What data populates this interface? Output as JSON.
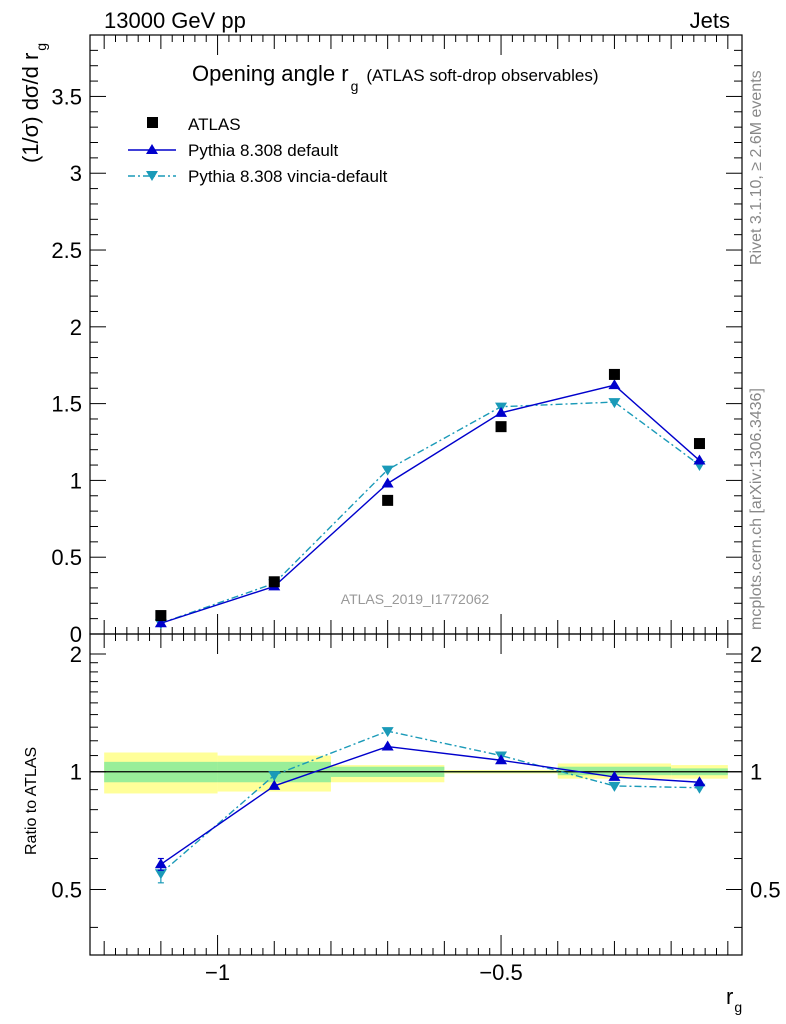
{
  "header": {
    "left": "13000 GeV pp",
    "right": "Jets"
  },
  "side_text": {
    "rivet": "Rivet 3.1.10, ≥ 2.6M events",
    "mcplots": "mcplots.cern.ch [arXiv:1306.3436]"
  },
  "chart_data": [
    {
      "type": "scatter",
      "title": "Opening angle r",
      "title_sub": "g",
      "subtitle": "(ATLAS soft-drop observables)",
      "ylabel": "(1/σ) dσ/d r",
      "ylabel_sub": "g",
      "watermark": "ATLAS_2019_I1772062",
      "xlim": [
        -1.225,
        -0.075
      ],
      "ylim": [
        0,
        3.9
      ],
      "yticks": [
        0,
        0.5,
        1,
        1.5,
        2,
        2.5,
        3,
        3.5
      ],
      "ytick_labels": [
        "0",
        "0.5",
        "1",
        "1.5",
        "2",
        "2.5",
        "3",
        "3.5"
      ],
      "legend_position": "top-left",
      "x": [
        -1.1,
        -0.9,
        -0.7,
        -0.5,
        -0.3,
        -0.15
      ],
      "series": [
        {
          "name": "ATLAS",
          "marker": "square",
          "color": "#000000",
          "values": [
            0.12,
            0.34,
            0.87,
            1.35,
            1.69,
            1.24
          ]
        },
        {
          "name": "Pythia 8.308 default",
          "marker": "triangle-up",
          "color": "#0000cc",
          "line": "solid",
          "values": [
            0.07,
            0.31,
            0.98,
            1.44,
            1.62,
            1.13
          ]
        },
        {
          "name": "Pythia 8.308 vincia-default",
          "marker": "triangle-down",
          "color": "#1a9ab8",
          "line": "dashdot",
          "values": [
            0.07,
            0.33,
            1.07,
            1.48,
            1.51,
            1.1
          ]
        }
      ]
    },
    {
      "type": "scatter",
      "ylabel": "Ratio to ATLAS",
      "xlabel": "r",
      "xlabel_sub": "g",
      "xlim": [
        -1.225,
        -0.075
      ],
      "ylim": [
        0.34,
        2.25
      ],
      "xticks": [
        -1,
        -0.5
      ],
      "xtick_labels": [
        "−1",
        "−0.5"
      ],
      "yticks": [
        0.5,
        1,
        2
      ],
      "ytick_labels": [
        "0.5",
        "1",
        "2"
      ],
      "reference": 1,
      "bands": [
        {
          "x": [
            -1.2,
            -1.0
          ],
          "yellow": [
            0.88,
            1.12
          ],
          "green": [
            0.94,
            1.06
          ]
        },
        {
          "x": [
            -1.0,
            -0.8
          ],
          "yellow": [
            0.89,
            1.1
          ],
          "green": [
            0.94,
            1.06
          ]
        },
        {
          "x": [
            -0.8,
            -0.6
          ],
          "yellow": [
            0.94,
            1.04
          ],
          "green": [
            0.97,
            1.03
          ]
        },
        {
          "x": [
            -0.6,
            -0.4
          ],
          "yellow": [
            0.99,
            1.01
          ],
          "green": [
            0.995,
            1.005
          ]
        },
        {
          "x": [
            -0.4,
            -0.2
          ],
          "yellow": [
            0.96,
            1.05
          ],
          "green": [
            0.98,
            1.03
          ]
        },
        {
          "x": [
            -0.2,
            -0.1
          ],
          "yellow": [
            0.96,
            1.04
          ],
          "green": [
            0.98,
            1.02
          ]
        }
      ],
      "x": [
        -1.1,
        -0.9,
        -0.7,
        -0.5,
        -0.3,
        -0.15
      ],
      "series": [
        {
          "name": "Pythia 8.308 default",
          "marker": "triangle-up",
          "color": "#0000cc",
          "line": "solid",
          "values": [
            0.58,
            0.92,
            1.16,
            1.07,
            0.97,
            0.94
          ],
          "err": [
            0.02,
            0,
            0,
            0,
            0,
            0
          ]
        },
        {
          "name": "Pythia 8.308 vincia-default",
          "marker": "triangle-down",
          "color": "#1a9ab8",
          "line": "dashdot",
          "values": [
            0.55,
            0.98,
            1.27,
            1.1,
            0.92,
            0.91
          ],
          "err": [
            0.03,
            0,
            0,
            0,
            0,
            0
          ]
        }
      ]
    }
  ]
}
